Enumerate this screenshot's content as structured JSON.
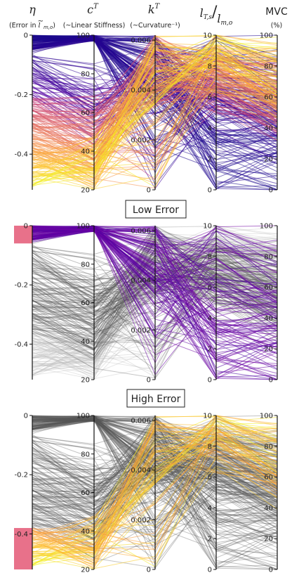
{
  "headers": [
    {
      "symbol": "η",
      "subtitle_pre": "(Error in ",
      "subtitle_sym": "l",
      "subtitle_sup": "~",
      "subtitle_sub": "m,o",
      "subtitle_post": ")"
    },
    {
      "symbol": "c",
      "sup": "T",
      "subtitle": "(~Linear Stiffness)"
    },
    {
      "symbol": "k",
      "sup": "T",
      "subtitle": "(~Curvature⁻¹)"
    },
    {
      "symbol": "l",
      "sub": "T,s",
      "slash": "/",
      "symbol2": "l",
      "sub2": "m,o"
    },
    {
      "symbol": "MVC",
      "subtitle": "(%)"
    }
  ],
  "labels": {
    "low_error": "Low Error",
    "high_error": "High Error"
  },
  "colors": {
    "highlight_band": "#e8718a",
    "gray_lines": "#555555",
    "light_gray": "#bbbbbb",
    "palette": [
      "#0d0887",
      "#5402a3",
      "#8b0aa5",
      "#b93289",
      "#db5c68",
      "#f48849",
      "#febc2a",
      "#f0f921"
    ]
  },
  "chart_data": [
    {
      "type": "parallel-coordinates",
      "title": "",
      "color_by": "η",
      "axes": [
        {
          "name": "η",
          "range": [
            -0.52,
            0
          ],
          "ticks": [
            "0",
            "-0.2",
            "-0.4"
          ],
          "tick_values": [
            0,
            -0.2,
            -0.4
          ]
        },
        {
          "name": "c^T",
          "range": [
            20,
            100
          ],
          "ticks": [
            "100",
            "80",
            "60",
            "40",
            "20"
          ],
          "tick_values": [
            100,
            80,
            60,
            40,
            20
          ]
        },
        {
          "name": "k^T",
          "range": [
            0,
            0.0062
          ],
          "ticks": [
            "0.006",
            "0.004",
            "0.002",
            "0"
          ],
          "tick_values": [
            0.006,
            0.004,
            0.002,
            0
          ]
        },
        {
          "name": "l_T,s/l_m,o",
          "range": [
            0,
            10
          ],
          "ticks": [
            "10",
            "8",
            "6",
            "4",
            "2",
            "0"
          ],
          "tick_values": [
            10,
            8,
            6,
            4,
            2,
            0
          ]
        },
        {
          "name": "MVC",
          "range": [
            0,
            100
          ],
          "ticks": [
            "100",
            "80",
            "60",
            "40",
            "20",
            "0"
          ],
          "tick_values": [
            100,
            80,
            60,
            40,
            20,
            0
          ]
        }
      ]
    },
    {
      "type": "parallel-coordinates",
      "title": "Low Error",
      "selection": {
        "axis": "η",
        "range": [
          -0.06,
          0
        ]
      },
      "axes": [
        {
          "name": "η",
          "range": [
            -0.52,
            0
          ],
          "ticks": [
            "0",
            "-0.2",
            "-0.4"
          ],
          "tick_values": [
            0,
            -0.2,
            -0.4
          ]
        },
        {
          "name": "c^T",
          "range": [
            20,
            100
          ],
          "ticks": [
            "100",
            "80",
            "60",
            "40",
            "20"
          ],
          "tick_values": [
            100,
            80,
            60,
            40,
            20
          ]
        },
        {
          "name": "k^T",
          "range": [
            0,
            0.0062
          ],
          "ticks": [
            "0.006",
            "0.004",
            "0.002",
            "0"
          ],
          "tick_values": [
            0.006,
            0.004,
            0.002,
            0
          ]
        },
        {
          "name": "l_T,s/l_m,o",
          "range": [
            0,
            10
          ],
          "ticks": [
            "10",
            "8",
            "6",
            "4",
            "2",
            "0"
          ],
          "tick_values": [
            10,
            8,
            6,
            4,
            2,
            0
          ]
        },
        {
          "name": "MVC",
          "range": [
            0,
            100
          ],
          "ticks": [
            "100",
            "80",
            "60",
            "40",
            "20",
            "0"
          ],
          "tick_values": [
            100,
            80,
            60,
            40,
            20,
            0
          ]
        }
      ]
    },
    {
      "type": "parallel-coordinates",
      "title": "High Error",
      "selection": {
        "axis": "η",
        "range": [
          -0.52,
          -0.38
        ]
      },
      "axes": [
        {
          "name": "η",
          "range": [
            -0.52,
            0
          ],
          "ticks": [
            "0",
            "-0.2",
            "-0.4"
          ],
          "tick_values": [
            0,
            -0.2,
            -0.4
          ]
        },
        {
          "name": "c^T",
          "range": [
            20,
            100
          ],
          "ticks": [
            "100",
            "80",
            "60",
            "40",
            "20"
          ],
          "tick_values": [
            100,
            80,
            60,
            40,
            20
          ]
        },
        {
          "name": "k^T",
          "range": [
            0,
            0.0062
          ],
          "ticks": [
            "0.006",
            "0.004",
            "0.002",
            "0"
          ],
          "tick_values": [
            0.006,
            0.004,
            0.002,
            0
          ]
        },
        {
          "name": "l_T,s/l_m,o",
          "range": [
            0,
            10
          ],
          "ticks": [
            "10",
            "8",
            "6",
            "4",
            "2",
            "0"
          ],
          "tick_values": [
            10,
            8,
            6,
            4,
            2,
            0
          ]
        },
        {
          "name": "MVC",
          "range": [
            0,
            100
          ],
          "ticks": [
            "100",
            "80",
            "60",
            "40",
            "20",
            "0"
          ],
          "tick_values": [
            100,
            80,
            60,
            40,
            20,
            0
          ]
        }
      ]
    }
  ]
}
